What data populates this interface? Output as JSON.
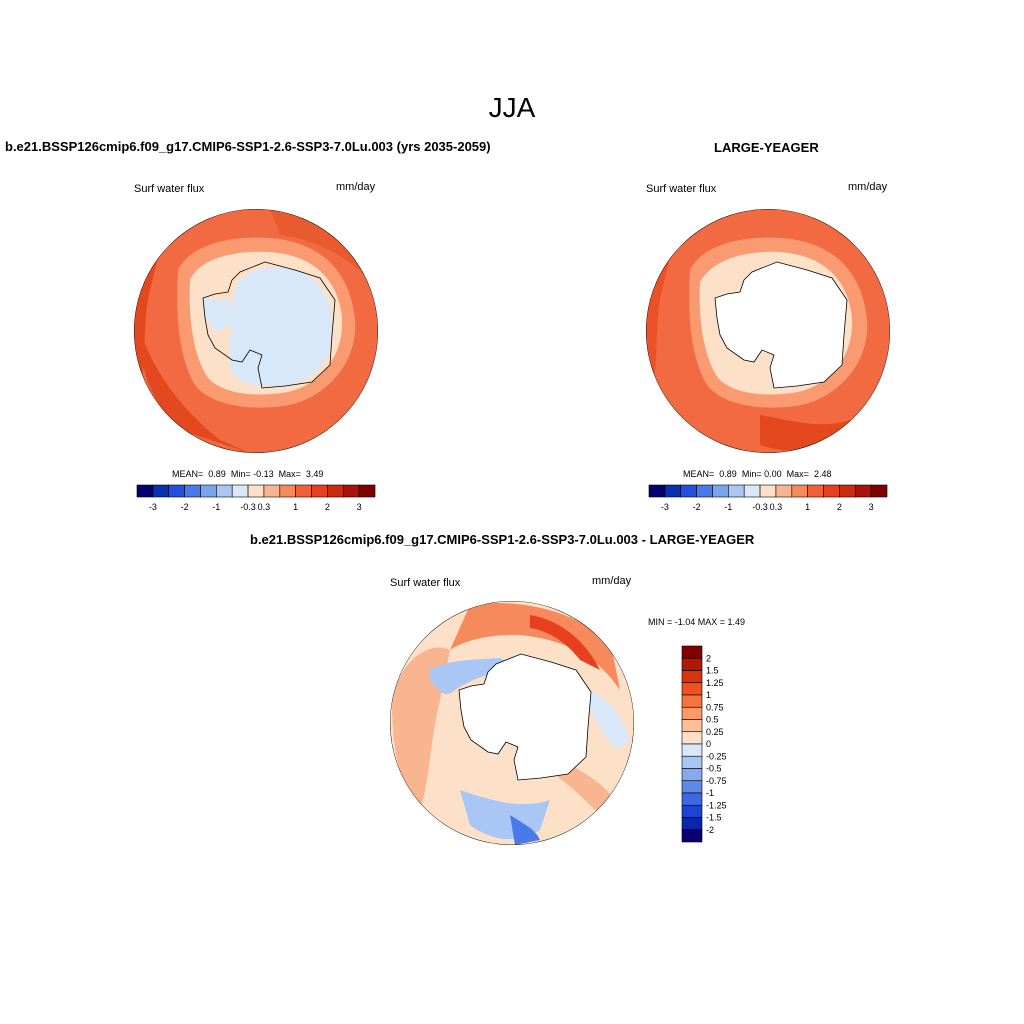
{
  "figure": {
    "season_title": "JJA"
  },
  "panels": [
    {
      "title": "b.e21.BSSP126cmip6.f09_g17.CMIP6-SSP1-2.6-SSP3-7.0Lu.003 (yrs 2035-2059)",
      "variable": "Surf water flux",
      "units": "mm/day",
      "stats": {
        "mean_label": "MEAN=",
        "mean": "0.89",
        "min_label": "Min=",
        "min": "-0.13",
        "max_label": "Max=",
        "max": "3.49"
      }
    },
    {
      "title": "LARGE-YEAGER",
      "variable": "Surf water flux",
      "units": "mm/day",
      "stats": {
        "mean_label": "MEAN=",
        "mean": "0.89",
        "min_label": "Min=",
        "min": "0.00",
        "max_label": "Max=",
        "max": "2.48"
      }
    }
  ],
  "diff_panel": {
    "title": "b.e21.BSSP126cmip6.f09_g17.CMIP6-SSP1-2.6-SSP3-7.0Lu.003 - LARGE-YEAGER",
    "variable": "Surf water flux",
    "units": "mm/day",
    "stats_text": "MIN = -1.04 MAX = 1.49"
  },
  "colorbar_main": {
    "tick_labels": [
      "-3",
      "-2",
      "-1",
      "-0.3",
      "0.3",
      "1",
      "2",
      "3"
    ],
    "colors": [
      "#08006e",
      "#0a2fb0",
      "#1f50e0",
      "#4a7ae8",
      "#7aa3f0",
      "#a9c6f5",
      "#d8e8f8",
      "#fde0c8",
      "#f9b490",
      "#f68a5c",
      "#f2603a",
      "#e8401e",
      "#cc2a10",
      "#a81208",
      "#800000"
    ]
  },
  "colorbar_diff": {
    "tick_labels": [
      "2",
      "1.5",
      "1.25",
      "1",
      "0.75",
      "0.5",
      "0.25",
      "0",
      "-0.25",
      "-0.5",
      "-0.75",
      "-1",
      "-1.25",
      "-1.5",
      "-2"
    ],
    "colors": [
      "#800000",
      "#b01808",
      "#d83410",
      "#f25022",
      "#f6743e",
      "#f99a6a",
      "#fbbf99",
      "#fde0c8",
      "#d8e8f8",
      "#a9c6f5",
      "#86a8ef",
      "#5f88e8",
      "#3e68e0",
      "#1f45d0",
      "#0a28a8",
      "#08006e"
    ]
  }
}
